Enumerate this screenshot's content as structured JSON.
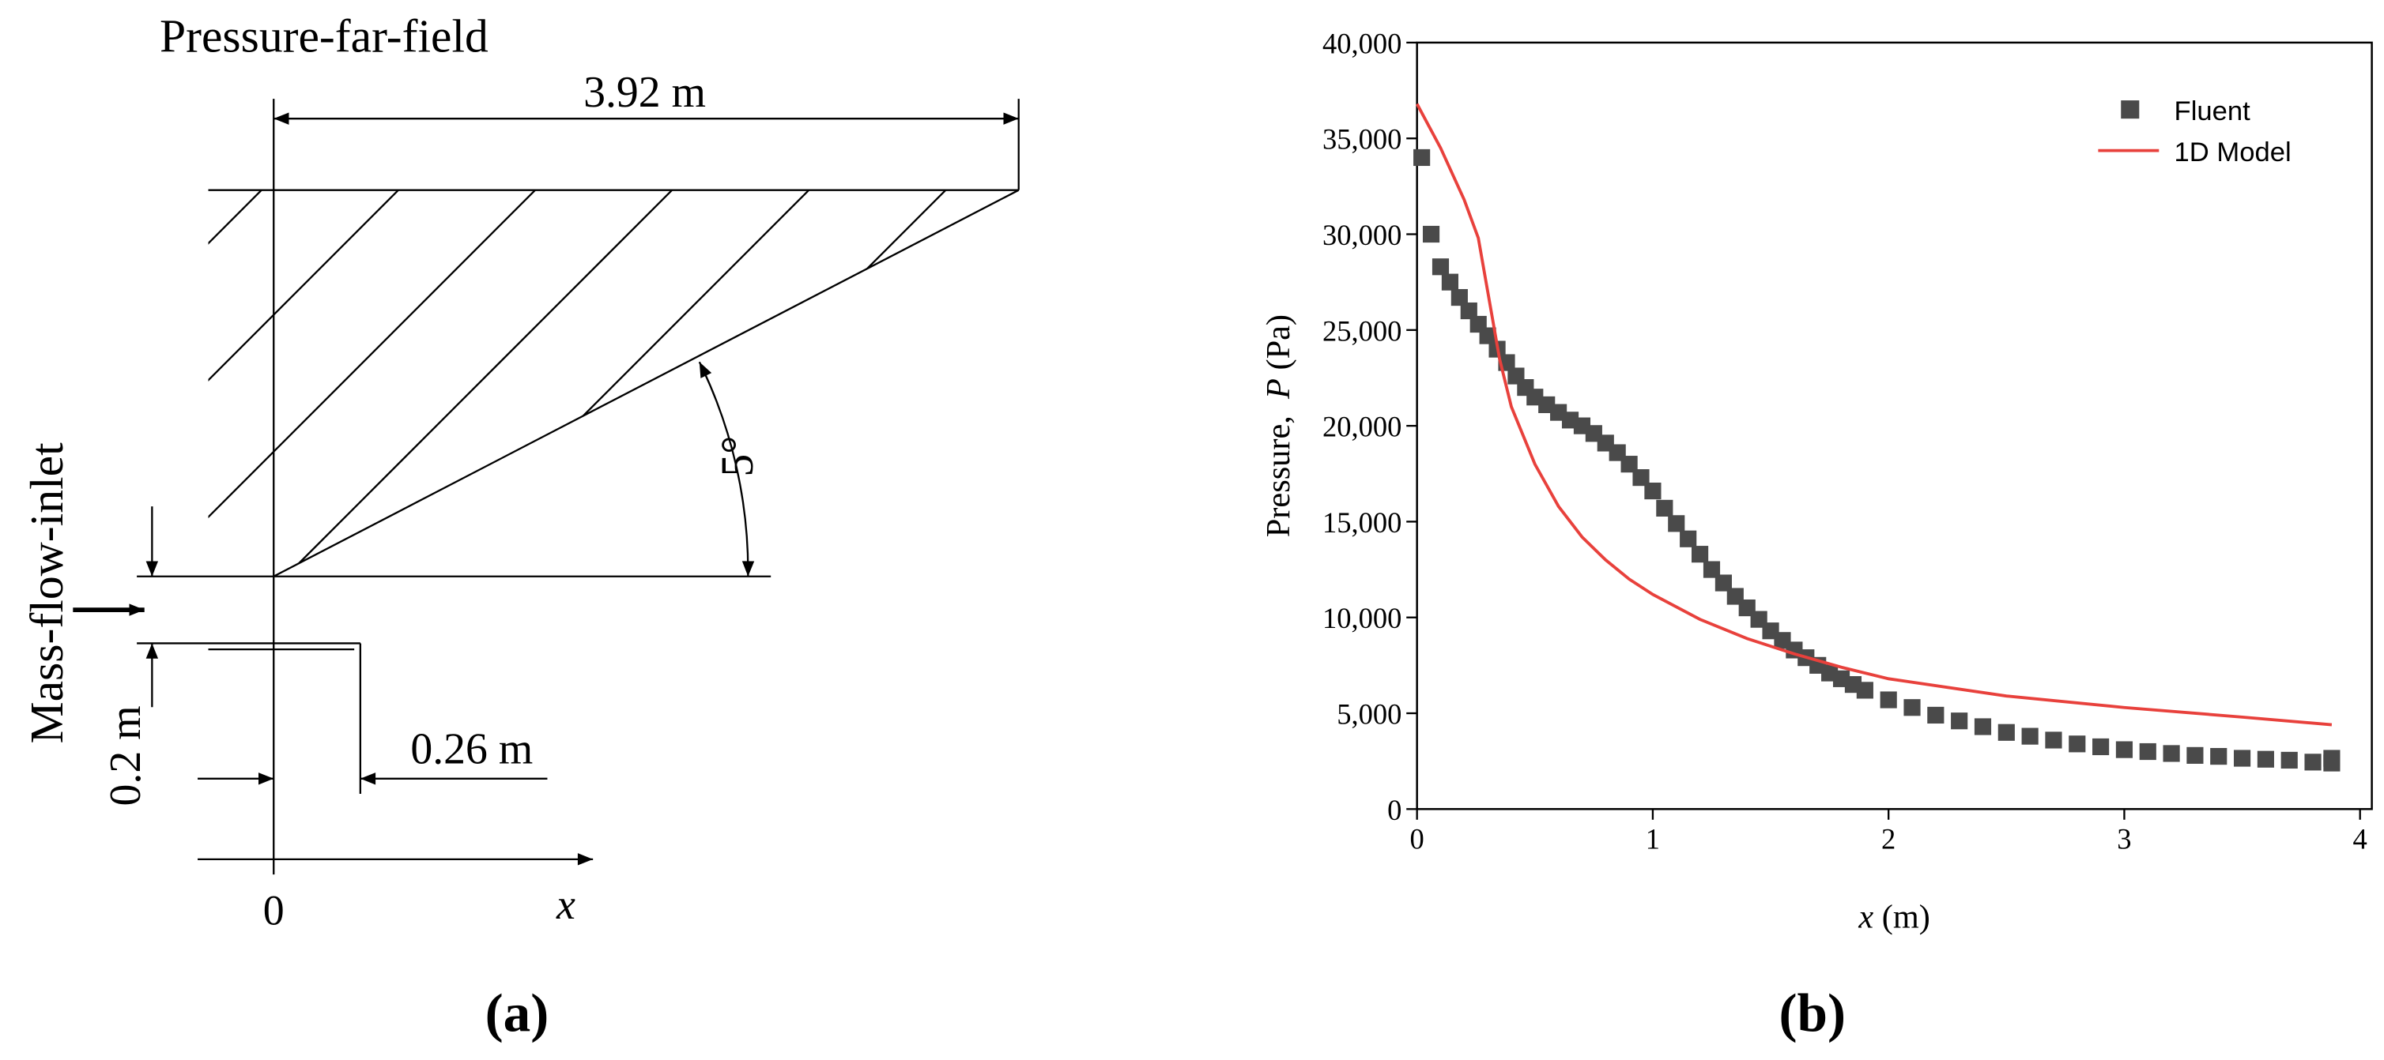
{
  "diagram": {
    "far_field": "Pressure-far-field",
    "length": "3.92 m",
    "angle": "5°",
    "inlet": "Mass-flow-inlet",
    "height": "0.2 m",
    "width": "0.26 m",
    "origin": "0",
    "axis": "x"
  },
  "panel_labels": [
    "(a)",
    "(b)"
  ],
  "chart_data": {
    "type": "line",
    "xlabel": [
      "x",
      " (m)"
    ],
    "ylabel": [
      "Pressure,  ",
      "P",
      " (Pa)"
    ],
    "xlim": [
      0,
      4.05
    ],
    "ylim": [
      0,
      40000
    ],
    "xticks": [
      0,
      1,
      2,
      3,
      4
    ],
    "yticks": [
      0,
      {
        "value": 5000,
        "label": "5,000"
      },
      {
        "value": 10000,
        "label": "10,000"
      },
      {
        "value": 15000,
        "label": "15,000"
      },
      {
        "value": 20000,
        "label": "20,000"
      },
      {
        "value": 25000,
        "label": "25,000"
      },
      {
        "value": 30000,
        "label": "30,000"
      },
      {
        "value": 35000,
        "label": "35,000"
      },
      {
        "value": 40000,
        "label": "40,000"
      }
    ],
    "legend": "upper right",
    "series": [
      {
        "name": "Fluent",
        "type": "scatter",
        "color": "#4a4a4a",
        "x": [
          0.02,
          0.06,
          0.1,
          0.14,
          0.18,
          0.22,
          0.26,
          0.3,
          0.34,
          0.38,
          0.42,
          0.46,
          0.5,
          0.55,
          0.6,
          0.65,
          0.7,
          0.75,
          0.8,
          0.85,
          0.9,
          0.95,
          1.0,
          1.05,
          1.1,
          1.15,
          1.2,
          1.25,
          1.3,
          1.35,
          1.4,
          1.45,
          1.5,
          1.55,
          1.6,
          1.65,
          1.7,
          1.75,
          1.8,
          1.85,
          1.9,
          2.0,
          2.1,
          2.2,
          2.3,
          2.4,
          2.5,
          2.6,
          2.7,
          2.8,
          2.9,
          3.0,
          3.1,
          3.2,
          3.3,
          3.4,
          3.5,
          3.6,
          3.7,
          3.8,
          3.88,
          3.88
        ],
        "values": [
          34000,
          30000,
          28300,
          27500,
          26700,
          26000,
          25300,
          24700,
          24000,
          23300,
          22600,
          22000,
          21500,
          21100,
          20700,
          20300,
          20000,
          19600,
          19100,
          18600,
          18000,
          17300,
          16600,
          15700,
          14900,
          14100,
          13300,
          12500,
          11800,
          11100,
          10500,
          9900,
          9300,
          8800,
          8300,
          7900,
          7500,
          7100,
          6800,
          6500,
          6200,
          5700,
          5300,
          4900,
          4600,
          4300,
          4000,
          3800,
          3600,
          3400,
          3250,
          3100,
          3000,
          2900,
          2800,
          2750,
          2650,
          2600,
          2550,
          2450,
          2400,
          2650
        ]
      },
      {
        "name": "1D Model",
        "type": "line",
        "color": "#e8413c",
        "x": [
          0,
          0.1,
          0.2,
          0.26,
          0.3,
          0.35,
          0.4,
          0.5,
          0.6,
          0.7,
          0.8,
          0.9,
          1.0,
          1.2,
          1.4,
          1.6,
          1.8,
          2.0,
          2.5,
          3.0,
          3.5,
          3.88
        ],
        "values": [
          36800,
          34500,
          31800,
          29800,
          27000,
          23500,
          21000,
          18000,
          15800,
          14200,
          13000,
          12000,
          11200,
          9900,
          8900,
          8100,
          7400,
          6800,
          5900,
          5300,
          4800,
          4400
        ]
      }
    ]
  }
}
